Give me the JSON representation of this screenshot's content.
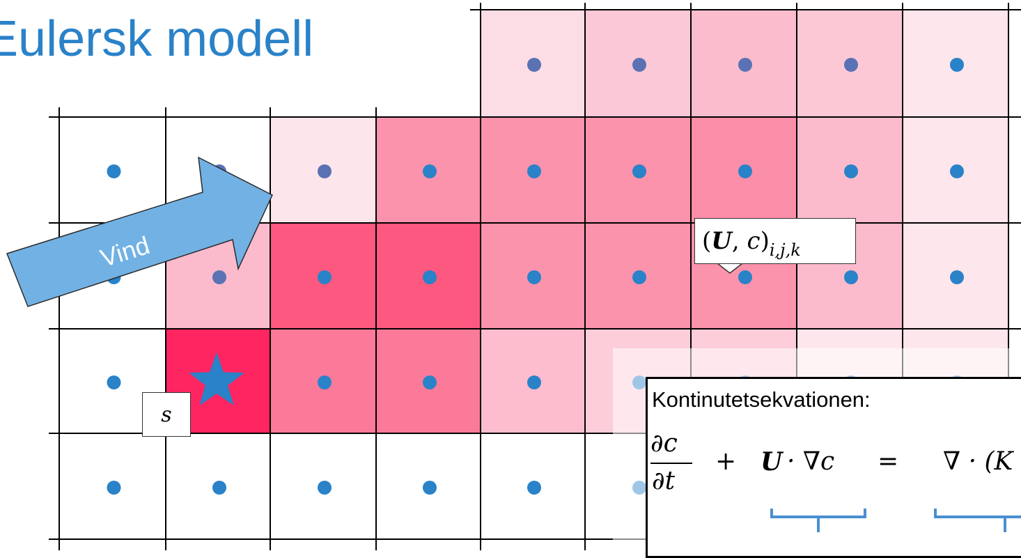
{
  "title": "Eulersk modell",
  "wind_label": "Vind",
  "source_label": "s",
  "cell_label": {
    "open": "(",
    "U": "U",
    "comma": ", ",
    "c": "c",
    "close": ")",
    "subscript": "i,j,k"
  },
  "equation": {
    "heading": "Kontinutetsekvationen:",
    "frac_numerator": "∂c",
    "frac_denominator": "∂t",
    "plus": "+",
    "advection_U": "U",
    "advection_rest": "· ∇c",
    "equals": "=",
    "diffusion": "∇ · (K"
  },
  "grid": {
    "cell_colors": [
      [
        "",
        "",
        "",
        "",
        "#fddde5",
        "#fac8d6",
        "#fbbccd",
        "#fcc8d6",
        "#fde6ec"
      ],
      [
        "#ffffff",
        "#ffffff",
        "#fde5ec",
        "#fb93ad",
        "#fb93ad",
        "#fb93ad",
        "#fb8fa9",
        "#fbbbcc",
        "#fde6ec"
      ],
      [
        "#ffffff",
        "#fbbbcc",
        "#fd587f",
        "#fd587f",
        "#fb93ad",
        "#fb93ad",
        "#fb93ad",
        "#fbbbcc",
        "#fde6ec"
      ],
      [
        "#ffffff",
        "#ff2560",
        "#fb7a99",
        "#fb7a99",
        "#fdbdce",
        "#fdcdda",
        "#fdcdda",
        "#fde6ec",
        "#fde6ec"
      ],
      [
        "#ffffff",
        "#ffffff",
        "#ffffff",
        "#ffffff",
        "#ffffff",
        "#ffffff",
        "#ffffff",
        "#ffffff",
        "#ffffff"
      ]
    ],
    "dot_color": "#2a82c8",
    "dot_color_dim": "#5a72b4"
  },
  "colors": {
    "title": "#2a82c8",
    "wind_arrow": "#72b1e4",
    "star": "#2a82c8",
    "brace": "#4a8fd0"
  }
}
